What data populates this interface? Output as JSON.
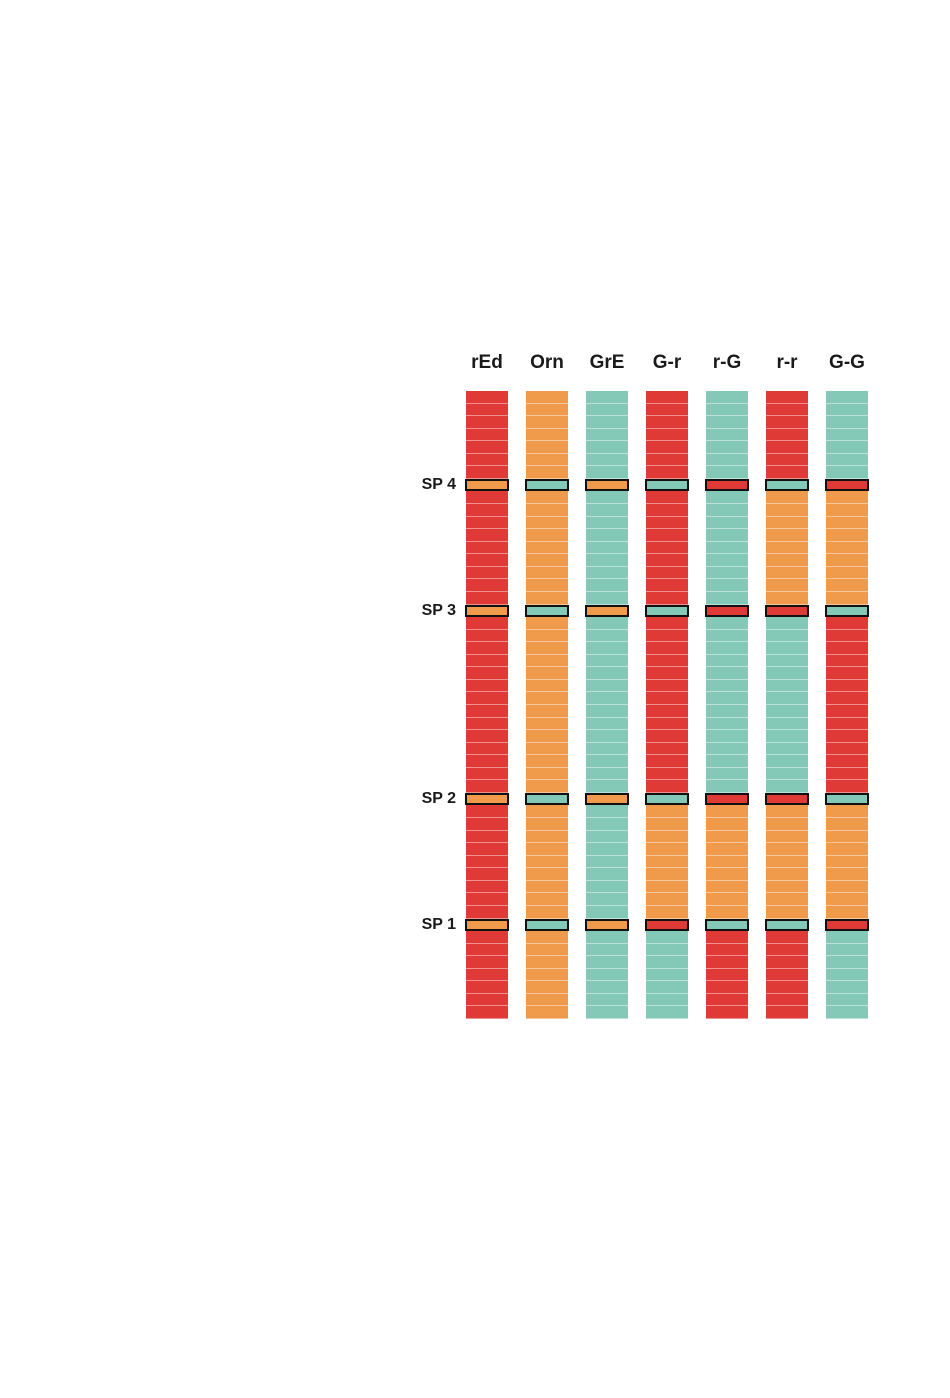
{
  "colors": {
    "r": "#e03a36",
    "o": "#f09a4c",
    "g": "#84c9b8"
  },
  "columns": [
    {
      "label": "rEd",
      "pattern": "r r r r r r r r r r r r r r r r r r r r r r r r r r r r r r r r r r r r r r r r r r r r r r r r r r",
      "sp": [
        "o",
        "o",
        "o",
        "o"
      ]
    },
    {
      "label": "Orn",
      "pattern": "o o o o o o o o o o o o o o o o o o o o o o o o o o o o o o o o o o o o o o o o o o o o o o o o o o",
      "sp": [
        "g",
        "g",
        "g",
        "g"
      ]
    },
    {
      "label": "GrE",
      "pattern": "g g g g g g g g g g g g g g g g g g g g g g g g g g g g g g g g g g g g g g g g g g g g g g g g g g",
      "sp": [
        "o",
        "o",
        "o",
        "o"
      ]
    },
    {
      "label": "G-r",
      "segments": [
        "r",
        "r",
        "r",
        "o",
        "g"
      ],
      "sp": [
        "g",
        "g",
        "g",
        "r"
      ]
    },
    {
      "label": "r-G",
      "segments": [
        "g",
        "g",
        "g",
        "o",
        "r"
      ],
      "sp": [
        "r",
        "r",
        "r",
        "g"
      ]
    },
    {
      "label": "r-r",
      "segments": [
        "r",
        "o",
        "g",
        "o",
        "r"
      ],
      "sp": [
        "g",
        "r",
        "r",
        "g"
      ]
    },
    {
      "label": "G-G",
      "segments": [
        "g",
        "o",
        "r",
        "o",
        "g"
      ],
      "sp": [
        "r",
        "g",
        "g",
        "r"
      ]
    }
  ],
  "sp_labels": [
    "SP 4",
    "SP 3",
    "SP 2",
    "SP 1"
  ]
}
